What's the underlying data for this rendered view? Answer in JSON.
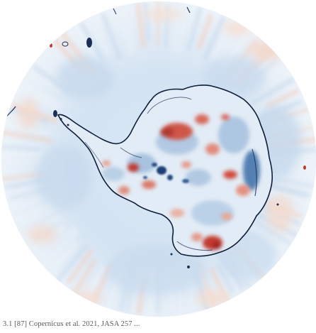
{
  "figure": {
    "caption": "3.1 [87] Copernicus et al. 2021, JASA 257 ..."
  },
  "colors": {
    "ocean_base": "#dfeaf5",
    "ocean_light": "#eef4fa",
    "ocean_blue": "#b7cfe6",
    "warm_faint": "#f6d9cc",
    "red": "#c03a2b",
    "red_deep": "#8e1f1d",
    "blue_deep": "#1f3f73",
    "coast": "#0e1e3a",
    "land_base": "#e4edf6"
  },
  "icons": {
    "map": "polar-stereographic-map"
  }
}
